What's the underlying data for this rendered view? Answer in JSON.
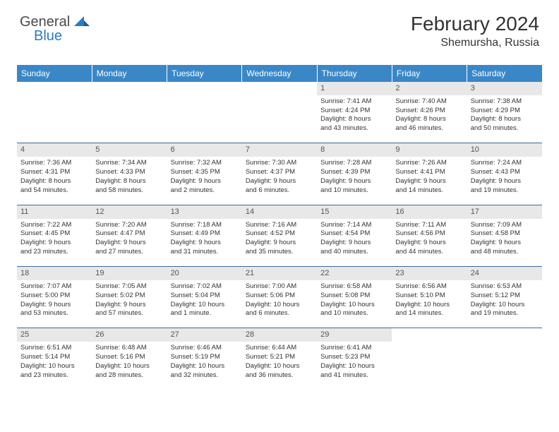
{
  "brand": {
    "general": "General",
    "blue": "Blue"
  },
  "title": "February 2024",
  "location": "Shemursha, Russia",
  "colors": {
    "header_bg": "#3a87c7",
    "header_fg": "#ffffff",
    "daynum_bg": "#e8e8e8",
    "border": "#3a6a9a",
    "brand_accent": "#2b7bbf"
  },
  "dayNames": [
    "Sunday",
    "Monday",
    "Tuesday",
    "Wednesday",
    "Thursday",
    "Friday",
    "Saturday"
  ],
  "weeks": [
    {
      "nums": [
        "",
        "",
        "",
        "",
        "1",
        "2",
        "3"
      ],
      "info": [
        null,
        null,
        null,
        null,
        {
          "sunrise": "Sunrise: 7:41 AM",
          "sunset": "Sunset: 4:24 PM",
          "d1": "Daylight: 8 hours",
          "d2": "and 43 minutes."
        },
        {
          "sunrise": "Sunrise: 7:40 AM",
          "sunset": "Sunset: 4:26 PM",
          "d1": "Daylight: 8 hours",
          "d2": "and 46 minutes."
        },
        {
          "sunrise": "Sunrise: 7:38 AM",
          "sunset": "Sunset: 4:29 PM",
          "d1": "Daylight: 8 hours",
          "d2": "and 50 minutes."
        }
      ]
    },
    {
      "nums": [
        "4",
        "5",
        "6",
        "7",
        "8",
        "9",
        "10"
      ],
      "info": [
        {
          "sunrise": "Sunrise: 7:36 AM",
          "sunset": "Sunset: 4:31 PM",
          "d1": "Daylight: 8 hours",
          "d2": "and 54 minutes."
        },
        {
          "sunrise": "Sunrise: 7:34 AM",
          "sunset": "Sunset: 4:33 PM",
          "d1": "Daylight: 8 hours",
          "d2": "and 58 minutes."
        },
        {
          "sunrise": "Sunrise: 7:32 AM",
          "sunset": "Sunset: 4:35 PM",
          "d1": "Daylight: 9 hours",
          "d2": "and 2 minutes."
        },
        {
          "sunrise": "Sunrise: 7:30 AM",
          "sunset": "Sunset: 4:37 PM",
          "d1": "Daylight: 9 hours",
          "d2": "and 6 minutes."
        },
        {
          "sunrise": "Sunrise: 7:28 AM",
          "sunset": "Sunset: 4:39 PM",
          "d1": "Daylight: 9 hours",
          "d2": "and 10 minutes."
        },
        {
          "sunrise": "Sunrise: 7:26 AM",
          "sunset": "Sunset: 4:41 PM",
          "d1": "Daylight: 9 hours",
          "d2": "and 14 minutes."
        },
        {
          "sunrise": "Sunrise: 7:24 AM",
          "sunset": "Sunset: 4:43 PM",
          "d1": "Daylight: 9 hours",
          "d2": "and 19 minutes."
        }
      ]
    },
    {
      "nums": [
        "11",
        "12",
        "13",
        "14",
        "15",
        "16",
        "17"
      ],
      "info": [
        {
          "sunrise": "Sunrise: 7:22 AM",
          "sunset": "Sunset: 4:45 PM",
          "d1": "Daylight: 9 hours",
          "d2": "and 23 minutes."
        },
        {
          "sunrise": "Sunrise: 7:20 AM",
          "sunset": "Sunset: 4:47 PM",
          "d1": "Daylight: 9 hours",
          "d2": "and 27 minutes."
        },
        {
          "sunrise": "Sunrise: 7:18 AM",
          "sunset": "Sunset: 4:49 PM",
          "d1": "Daylight: 9 hours",
          "d2": "and 31 minutes."
        },
        {
          "sunrise": "Sunrise: 7:16 AM",
          "sunset": "Sunset: 4:52 PM",
          "d1": "Daylight: 9 hours",
          "d2": "and 35 minutes."
        },
        {
          "sunrise": "Sunrise: 7:14 AM",
          "sunset": "Sunset: 4:54 PM",
          "d1": "Daylight: 9 hours",
          "d2": "and 40 minutes."
        },
        {
          "sunrise": "Sunrise: 7:11 AM",
          "sunset": "Sunset: 4:56 PM",
          "d1": "Daylight: 9 hours",
          "d2": "and 44 minutes."
        },
        {
          "sunrise": "Sunrise: 7:09 AM",
          "sunset": "Sunset: 4:58 PM",
          "d1": "Daylight: 9 hours",
          "d2": "and 48 minutes."
        }
      ]
    },
    {
      "nums": [
        "18",
        "19",
        "20",
        "21",
        "22",
        "23",
        "24"
      ],
      "info": [
        {
          "sunrise": "Sunrise: 7:07 AM",
          "sunset": "Sunset: 5:00 PM",
          "d1": "Daylight: 9 hours",
          "d2": "and 53 minutes."
        },
        {
          "sunrise": "Sunrise: 7:05 AM",
          "sunset": "Sunset: 5:02 PM",
          "d1": "Daylight: 9 hours",
          "d2": "and 57 minutes."
        },
        {
          "sunrise": "Sunrise: 7:02 AM",
          "sunset": "Sunset: 5:04 PM",
          "d1": "Daylight: 10 hours",
          "d2": "and 1 minute."
        },
        {
          "sunrise": "Sunrise: 7:00 AM",
          "sunset": "Sunset: 5:06 PM",
          "d1": "Daylight: 10 hours",
          "d2": "and 6 minutes."
        },
        {
          "sunrise": "Sunrise: 6:58 AM",
          "sunset": "Sunset: 5:08 PM",
          "d1": "Daylight: 10 hours",
          "d2": "and 10 minutes."
        },
        {
          "sunrise": "Sunrise: 6:56 AM",
          "sunset": "Sunset: 5:10 PM",
          "d1": "Daylight: 10 hours",
          "d2": "and 14 minutes."
        },
        {
          "sunrise": "Sunrise: 6:53 AM",
          "sunset": "Sunset: 5:12 PM",
          "d1": "Daylight: 10 hours",
          "d2": "and 19 minutes."
        }
      ]
    },
    {
      "nums": [
        "25",
        "26",
        "27",
        "28",
        "29",
        "",
        ""
      ],
      "info": [
        {
          "sunrise": "Sunrise: 6:51 AM",
          "sunset": "Sunset: 5:14 PM",
          "d1": "Daylight: 10 hours",
          "d2": "and 23 minutes."
        },
        {
          "sunrise": "Sunrise: 6:48 AM",
          "sunset": "Sunset: 5:16 PM",
          "d1": "Daylight: 10 hours",
          "d2": "and 28 minutes."
        },
        {
          "sunrise": "Sunrise: 6:46 AM",
          "sunset": "Sunset: 5:19 PM",
          "d1": "Daylight: 10 hours",
          "d2": "and 32 minutes."
        },
        {
          "sunrise": "Sunrise: 6:44 AM",
          "sunset": "Sunset: 5:21 PM",
          "d1": "Daylight: 10 hours",
          "d2": "and 36 minutes."
        },
        {
          "sunrise": "Sunrise: 6:41 AM",
          "sunset": "Sunset: 5:23 PM",
          "d1": "Daylight: 10 hours",
          "d2": "and 41 minutes."
        },
        null,
        null
      ]
    }
  ]
}
